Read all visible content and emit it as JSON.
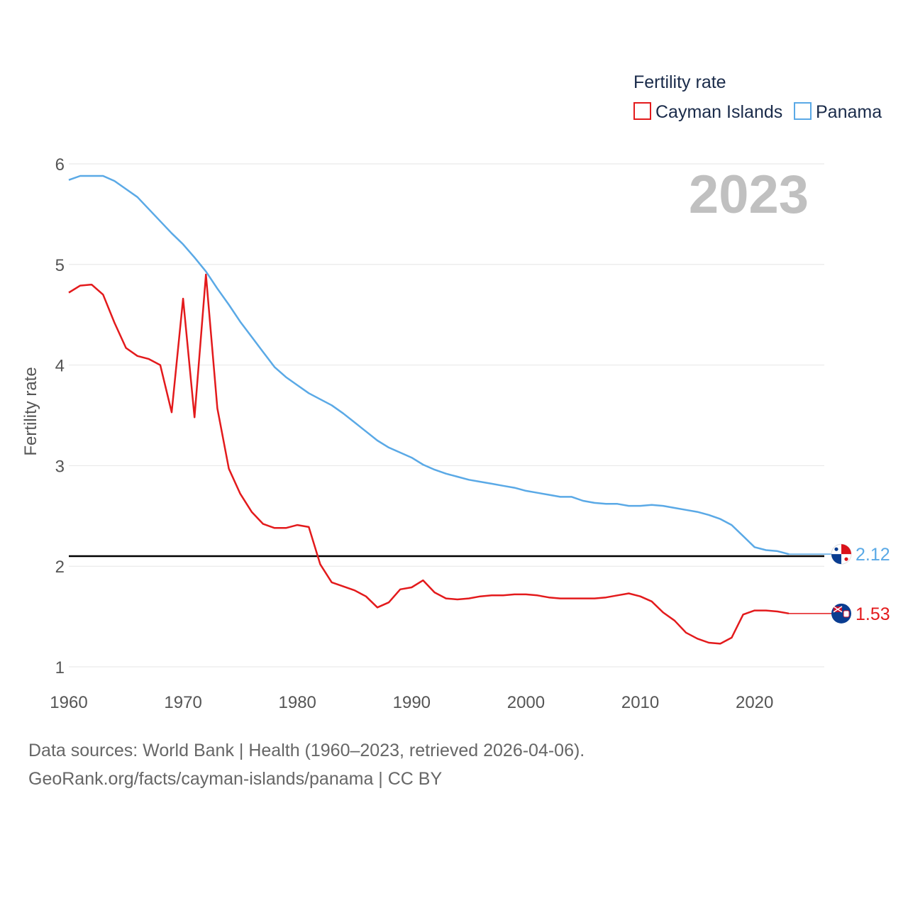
{
  "chart_data": {
    "type": "line",
    "legend_title": "Fertility rate",
    "ylabel": "Fertility rate",
    "xlabel": "",
    "year_label": "2023",
    "xlim": [
      1960,
      2023
    ],
    "ylim": [
      1,
      6
    ],
    "x_ticks": [
      1960,
      1970,
      1980,
      1990,
      2000,
      2010,
      2020
    ],
    "y_ticks": [
      1,
      2,
      3,
      4,
      5,
      6
    ],
    "grid": true,
    "legend_position": "top-right",
    "reference_line": {
      "value": 2.1,
      "color": "#000000"
    },
    "x": [
      1960,
      1961,
      1962,
      1963,
      1964,
      1965,
      1966,
      1967,
      1968,
      1969,
      1970,
      1971,
      1972,
      1973,
      1974,
      1975,
      1976,
      1977,
      1978,
      1979,
      1980,
      1981,
      1982,
      1983,
      1984,
      1985,
      1986,
      1987,
      1988,
      1989,
      1990,
      1991,
      1992,
      1993,
      1994,
      1995,
      1996,
      1997,
      1998,
      1999,
      2000,
      2001,
      2002,
      2003,
      2004,
      2005,
      2006,
      2007,
      2008,
      2009,
      2010,
      2011,
      2012,
      2013,
      2014,
      2015,
      2016,
      2017,
      2018,
      2019,
      2020,
      2021,
      2022,
      2023
    ],
    "series": [
      {
        "name": "Cayman Islands",
        "color": "#e31a1c",
        "end_label": "1.53",
        "flag": "Cayman Islands flag",
        "values": [
          4.72,
          4.79,
          4.8,
          4.7,
          4.42,
          4.17,
          4.09,
          4.06,
          4.0,
          3.53,
          4.66,
          3.48,
          4.9,
          3.57,
          2.97,
          2.72,
          2.54,
          2.42,
          2.38,
          2.38,
          2.41,
          2.39,
          2.02,
          1.84,
          1.8,
          1.76,
          1.7,
          1.59,
          1.64,
          1.77,
          1.79,
          1.86,
          1.74,
          1.68,
          1.67,
          1.68,
          1.7,
          1.71,
          1.71,
          1.72,
          1.72,
          1.71,
          1.69,
          1.68,
          1.68,
          1.68,
          1.68,
          1.69,
          1.71,
          1.73,
          1.7,
          1.65,
          1.54,
          1.46,
          1.34,
          1.28,
          1.24,
          1.23,
          1.29,
          1.52,
          1.56,
          1.56,
          1.55,
          1.53
        ]
      },
      {
        "name": "Panama",
        "color": "#5aa9e6",
        "end_label": "2.12",
        "flag": "Panama flag",
        "values": [
          5.84,
          5.88,
          5.88,
          5.88,
          5.83,
          5.75,
          5.67,
          5.55,
          5.43,
          5.31,
          5.2,
          5.07,
          4.93,
          4.76,
          4.6,
          4.43,
          4.28,
          4.13,
          3.98,
          3.88,
          3.8,
          3.72,
          3.66,
          3.6,
          3.52,
          3.43,
          3.34,
          3.25,
          3.18,
          3.13,
          3.08,
          3.01,
          2.96,
          2.92,
          2.89,
          2.86,
          2.84,
          2.82,
          2.8,
          2.78,
          2.75,
          2.73,
          2.71,
          2.69,
          2.69,
          2.65,
          2.63,
          2.62,
          2.62,
          2.6,
          2.6,
          2.61,
          2.6,
          2.58,
          2.56,
          2.54,
          2.51,
          2.47,
          2.41,
          2.3,
          2.19,
          2.16,
          2.15,
          2.12
        ]
      }
    ]
  },
  "footer": {
    "line1": "Data sources: World Bank | Health (1960–2023, retrieved 2026-04-06).",
    "line2": "GeoRank.org/facts/cayman-islands/panama | CC BY"
  }
}
